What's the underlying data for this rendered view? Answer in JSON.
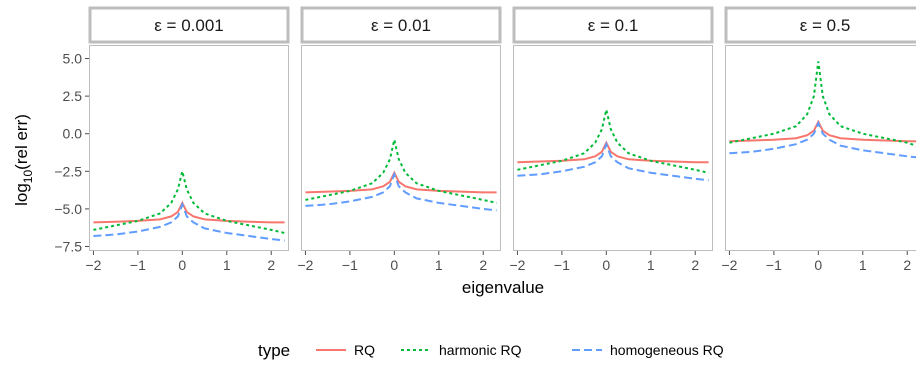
{
  "chart_data": {
    "type": "line",
    "ylabel": "log10(rel err)",
    "xlabel": "eigenvalue",
    "xlim": [
      -2.1,
      2.4
    ],
    "ylim": [
      -7.8,
      5.9
    ],
    "x_ticks": [
      -2,
      -1,
      0,
      1,
      2
    ],
    "y_ticks": [
      5.0,
      2.5,
      0.0,
      -2.5,
      -5.0,
      -7.5
    ],
    "y_tick_labels": [
      "5.0",
      "2.5",
      "0.0",
      "−2.5",
      "−5.0",
      "−7.5"
    ],
    "x_tick_labels": [
      "−2",
      "−1",
      "0",
      "1",
      "2"
    ],
    "grid": false,
    "legend": {
      "title": "type",
      "placement": "bottom",
      "entries": [
        "RQ",
        "harmonic RQ",
        "homogeneous RQ"
      ]
    },
    "series_styles": [
      {
        "name": "RQ",
        "color": "#F8766D",
        "dash": "none"
      },
      {
        "name": "harmonic RQ",
        "color": "#00BA38",
        "dash": "dotted"
      },
      {
        "name": "homogeneous RQ",
        "color": "#619CFF",
        "dash": "dashed"
      }
    ],
    "panels": [
      {
        "label": "ε = 0.001",
        "series": [
          {
            "name": "RQ",
            "x": [
              -2,
              -1.5,
              -1,
              -0.5,
              -0.25,
              -0.1,
              0,
              0.1,
              0.25,
              0.5,
              1,
              1.5,
              2,
              2.3
            ],
            "y": [
              -5.9,
              -5.85,
              -5.8,
              -5.7,
              -5.5,
              -5.2,
              -4.6,
              -5.2,
              -5.5,
              -5.7,
              -5.8,
              -5.85,
              -5.9,
              -5.9
            ]
          },
          {
            "name": "harmonic RQ",
            "x": [
              -2,
              -1.5,
              -1,
              -0.5,
              -0.25,
              -0.1,
              0,
              0.1,
              0.25,
              0.5,
              1,
              1.5,
              2,
              2.3
            ],
            "y": [
              -6.4,
              -6.1,
              -5.8,
              -5.3,
              -4.6,
              -3.7,
              -2.5,
              -3.7,
              -4.6,
              -5.3,
              -5.8,
              -6.1,
              -6.4,
              -6.6
            ]
          },
          {
            "name": "homogeneous RQ",
            "x": [
              -2,
              -1.5,
              -1,
              -0.5,
              -0.25,
              -0.1,
              0,
              0.1,
              0.25,
              0.5,
              1,
              1.5,
              2,
              2.3
            ],
            "y": [
              -6.8,
              -6.7,
              -6.5,
              -6.2,
              -5.9,
              -5.5,
              -4.7,
              -5.5,
              -5.9,
              -6.3,
              -6.6,
              -6.8,
              -7.0,
              -7.1
            ]
          }
        ]
      },
      {
        "label": "ε = 0.01",
        "series": [
          {
            "name": "RQ",
            "x": [
              -2,
              -1.5,
              -1,
              -0.5,
              -0.25,
              -0.1,
              0,
              0.1,
              0.25,
              0.5,
              1,
              1.5,
              2,
              2.3
            ],
            "y": [
              -3.9,
              -3.85,
              -3.8,
              -3.7,
              -3.5,
              -3.2,
              -2.6,
              -3.2,
              -3.5,
              -3.7,
              -3.8,
              -3.85,
              -3.9,
              -3.9
            ]
          },
          {
            "name": "harmonic RQ",
            "x": [
              -2,
              -1.5,
              -1,
              -0.5,
              -0.25,
              -0.1,
              0,
              0.1,
              0.25,
              0.5,
              1,
              1.5,
              2,
              2.3
            ],
            "y": [
              -4.4,
              -4.1,
              -3.8,
              -3.3,
              -2.6,
              -1.7,
              -0.4,
              -1.7,
              -2.6,
              -3.3,
              -3.8,
              -4.1,
              -4.4,
              -4.6
            ]
          },
          {
            "name": "homogeneous RQ",
            "x": [
              -2,
              -1.5,
              -1,
              -0.5,
              -0.25,
              -0.1,
              0,
              0.1,
              0.25,
              0.5,
              1,
              1.5,
              2,
              2.3
            ],
            "y": [
              -4.8,
              -4.7,
              -4.5,
              -4.2,
              -3.9,
              -3.5,
              -2.7,
              -3.5,
              -3.9,
              -4.3,
              -4.6,
              -4.8,
              -5.0,
              -5.1
            ]
          }
        ]
      },
      {
        "label": "ε = 0.1",
        "series": [
          {
            "name": "RQ",
            "x": [
              -2,
              -1.5,
              -1,
              -0.5,
              -0.25,
              -0.1,
              0,
              0.1,
              0.25,
              0.5,
              1,
              1.5,
              2,
              2.3
            ],
            "y": [
              -1.9,
              -1.85,
              -1.8,
              -1.7,
              -1.5,
              -1.2,
              -0.6,
              -1.2,
              -1.5,
              -1.7,
              -1.8,
              -1.85,
              -1.9,
              -1.9
            ]
          },
          {
            "name": "harmonic RQ",
            "x": [
              -2,
              -1.5,
              -1,
              -0.5,
              -0.25,
              -0.1,
              0,
              0.1,
              0.25,
              0.5,
              1,
              1.5,
              2,
              2.3
            ],
            "y": [
              -2.4,
              -2.1,
              -1.8,
              -1.3,
              -0.6,
              0.3,
              1.6,
              0.3,
              -0.6,
              -1.3,
              -1.8,
              -2.1,
              -2.4,
              -2.6
            ]
          },
          {
            "name": "homogeneous RQ",
            "x": [
              -2,
              -1.5,
              -1,
              -0.5,
              -0.25,
              -0.1,
              0,
              0.1,
              0.25,
              0.5,
              1,
              1.5,
              2,
              2.3
            ],
            "y": [
              -2.8,
              -2.7,
              -2.5,
              -2.2,
              -1.9,
              -1.5,
              -0.7,
              -1.5,
              -1.9,
              -2.3,
              -2.6,
              -2.8,
              -3.0,
              -3.1
            ]
          }
        ]
      },
      {
        "label": "ε = 0.5",
        "series": [
          {
            "name": "RQ",
            "x": [
              -2,
              -1.5,
              -1,
              -0.5,
              -0.25,
              -0.1,
              0,
              0.1,
              0.25,
              0.5,
              1,
              1.5,
              2,
              2.3
            ],
            "y": [
              -0.5,
              -0.45,
              -0.4,
              -0.3,
              -0.1,
              0.2,
              0.8,
              0.2,
              -0.1,
              -0.3,
              -0.4,
              -0.45,
              -0.5,
              -0.5
            ]
          },
          {
            "name": "harmonic RQ",
            "x": [
              -2,
              -1.5,
              -1,
              -0.5,
              -0.25,
              -0.1,
              0,
              0.1,
              0.25,
              0.5,
              1,
              1.5,
              2,
              2.3
            ],
            "y": [
              -0.6,
              -0.3,
              0.0,
              0.5,
              1.3,
              2.5,
              4.8,
              2.5,
              1.3,
              0.5,
              0.0,
              -0.3,
              -0.6,
              -0.9
            ]
          },
          {
            "name": "homogeneous RQ",
            "x": [
              -2,
              -1.5,
              -1,
              -0.5,
              -0.25,
              -0.1,
              0,
              0.1,
              0.25,
              0.5,
              1,
              1.5,
              2,
              2.3
            ],
            "y": [
              -1.3,
              -1.2,
              -1.0,
              -0.7,
              -0.4,
              0.0,
              0.7,
              0.0,
              -0.4,
              -0.8,
              -1.1,
              -1.3,
              -1.5,
              -1.6
            ]
          }
        ]
      }
    ]
  }
}
